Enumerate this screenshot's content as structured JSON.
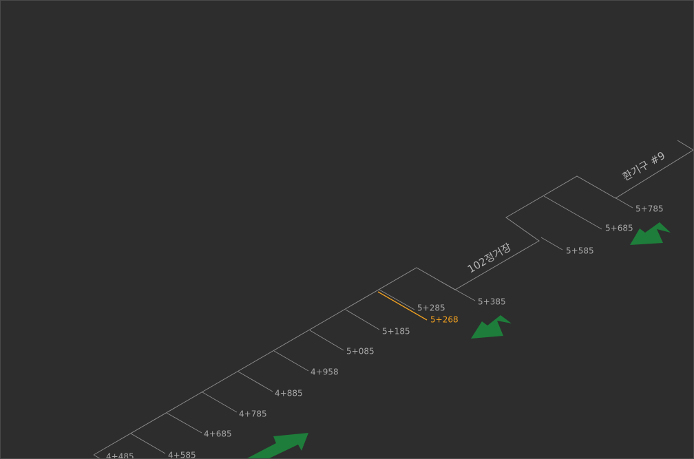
{
  "colors": {
    "background": "#2d2d2d",
    "line": "#8a8a8a",
    "label": "#a8a8a8",
    "station": "#b4b4b4",
    "highlight": "#f0a020",
    "arrow": "#1e7d3a"
  },
  "ticks": [
    {
      "label": "4+485"
    },
    {
      "label": "4+585"
    },
    {
      "label": "4+685"
    },
    {
      "label": "4+785"
    },
    {
      "label": "4+885"
    },
    {
      "label": "4+958"
    },
    {
      "label": "5+085"
    },
    {
      "label": "5+185"
    },
    {
      "label": "5+285"
    },
    {
      "label": "5+385"
    },
    {
      "label": "5+585"
    },
    {
      "label": "5+685"
    },
    {
      "label": "5+785"
    }
  ],
  "highlight": {
    "label": "5+268"
  },
  "stations": [
    {
      "label": "102정거장"
    },
    {
      "label": "환기구 #9"
    }
  ],
  "arrows": [
    {
      "name": "up-right-arrow",
      "direction": "up-right"
    },
    {
      "name": "down-left-arrow-1",
      "direction": "down-left"
    },
    {
      "name": "down-left-arrow-2",
      "direction": "down-left"
    }
  ]
}
